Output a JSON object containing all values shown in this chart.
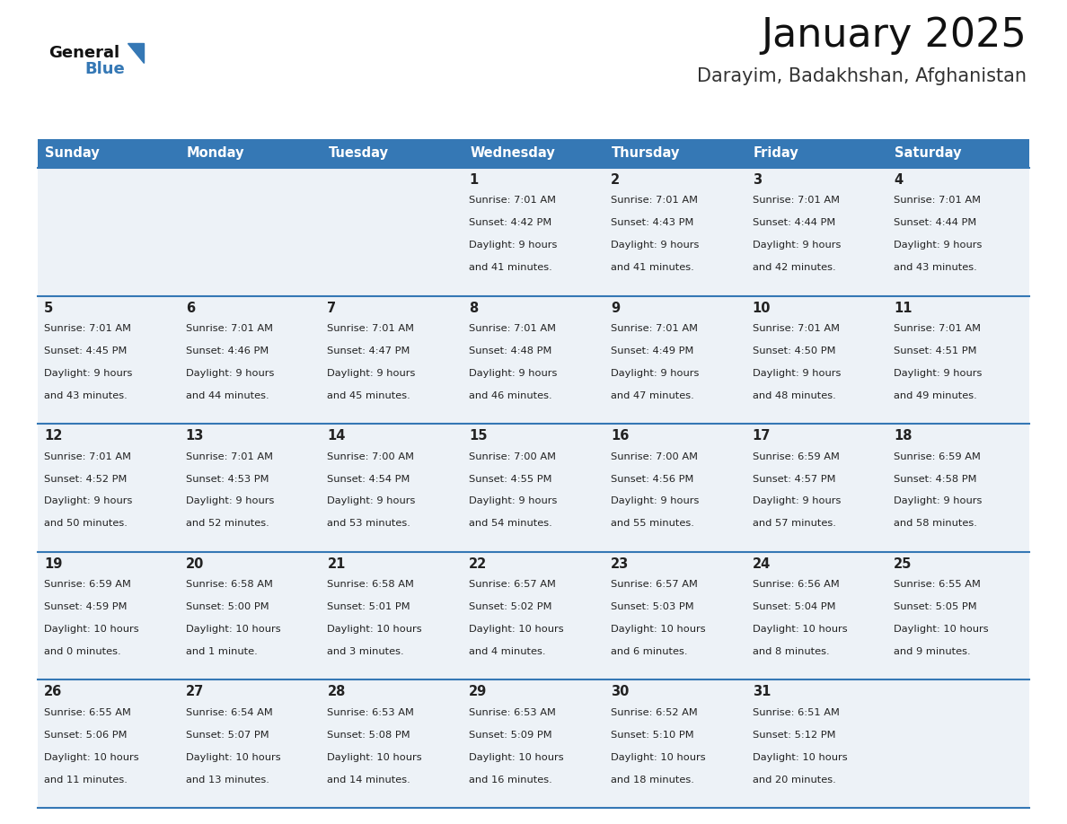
{
  "title": "January 2025",
  "subtitle": "Darayim, Badakhshan, Afghanistan",
  "header_bg_color": "#3578b5",
  "header_text_color": "#ffffff",
  "cell_bg_color": "#edf2f7",
  "text_color": "#222222",
  "divider_color": "#3578b5",
  "days_of_week": [
    "Sunday",
    "Monday",
    "Tuesday",
    "Wednesday",
    "Thursday",
    "Friday",
    "Saturday"
  ],
  "calendar": [
    [
      {
        "day": "",
        "sunrise": "",
        "sunset": "",
        "daylight_h": "",
        "daylight_m": ""
      },
      {
        "day": "",
        "sunrise": "",
        "sunset": "",
        "daylight_h": "",
        "daylight_m": ""
      },
      {
        "day": "",
        "sunrise": "",
        "sunset": "",
        "daylight_h": "",
        "daylight_m": ""
      },
      {
        "day": "1",
        "sunrise": "7:01 AM",
        "sunset": "4:42 PM",
        "daylight_h": "9",
        "daylight_m": "41"
      },
      {
        "day": "2",
        "sunrise": "7:01 AM",
        "sunset": "4:43 PM",
        "daylight_h": "9",
        "daylight_m": "41"
      },
      {
        "day": "3",
        "sunrise": "7:01 AM",
        "sunset": "4:44 PM",
        "daylight_h": "9",
        "daylight_m": "42"
      },
      {
        "day": "4",
        "sunrise": "7:01 AM",
        "sunset": "4:44 PM",
        "daylight_h": "9",
        "daylight_m": "43"
      }
    ],
    [
      {
        "day": "5",
        "sunrise": "7:01 AM",
        "sunset": "4:45 PM",
        "daylight_h": "9",
        "daylight_m": "43"
      },
      {
        "day": "6",
        "sunrise": "7:01 AM",
        "sunset": "4:46 PM",
        "daylight_h": "9",
        "daylight_m": "44"
      },
      {
        "day": "7",
        "sunrise": "7:01 AM",
        "sunset": "4:47 PM",
        "daylight_h": "9",
        "daylight_m": "45"
      },
      {
        "day": "8",
        "sunrise": "7:01 AM",
        "sunset": "4:48 PM",
        "daylight_h": "9",
        "daylight_m": "46"
      },
      {
        "day": "9",
        "sunrise": "7:01 AM",
        "sunset": "4:49 PM",
        "daylight_h": "9",
        "daylight_m": "47"
      },
      {
        "day": "10",
        "sunrise": "7:01 AM",
        "sunset": "4:50 PM",
        "daylight_h": "9",
        "daylight_m": "48"
      },
      {
        "day": "11",
        "sunrise": "7:01 AM",
        "sunset": "4:51 PM",
        "daylight_h": "9",
        "daylight_m": "49"
      }
    ],
    [
      {
        "day": "12",
        "sunrise": "7:01 AM",
        "sunset": "4:52 PM",
        "daylight_h": "9",
        "daylight_m": "50"
      },
      {
        "day": "13",
        "sunrise": "7:01 AM",
        "sunset": "4:53 PM",
        "daylight_h": "9",
        "daylight_m": "52"
      },
      {
        "day": "14",
        "sunrise": "7:00 AM",
        "sunset": "4:54 PM",
        "daylight_h": "9",
        "daylight_m": "53"
      },
      {
        "day": "15",
        "sunrise": "7:00 AM",
        "sunset": "4:55 PM",
        "daylight_h": "9",
        "daylight_m": "54"
      },
      {
        "day": "16",
        "sunrise": "7:00 AM",
        "sunset": "4:56 PM",
        "daylight_h": "9",
        "daylight_m": "55"
      },
      {
        "day": "17",
        "sunrise": "6:59 AM",
        "sunset": "4:57 PM",
        "daylight_h": "9",
        "daylight_m": "57"
      },
      {
        "day": "18",
        "sunrise": "6:59 AM",
        "sunset": "4:58 PM",
        "daylight_h": "9",
        "daylight_m": "58"
      }
    ],
    [
      {
        "day": "19",
        "sunrise": "6:59 AM",
        "sunset": "4:59 PM",
        "daylight_h": "10",
        "daylight_m": "0"
      },
      {
        "day": "20",
        "sunrise": "6:58 AM",
        "sunset": "5:00 PM",
        "daylight_h": "10",
        "daylight_m": "1"
      },
      {
        "day": "21",
        "sunrise": "6:58 AM",
        "sunset": "5:01 PM",
        "daylight_h": "10",
        "daylight_m": "3"
      },
      {
        "day": "22",
        "sunrise": "6:57 AM",
        "sunset": "5:02 PM",
        "daylight_h": "10",
        "daylight_m": "4"
      },
      {
        "day": "23",
        "sunrise": "6:57 AM",
        "sunset": "5:03 PM",
        "daylight_h": "10",
        "daylight_m": "6"
      },
      {
        "day": "24",
        "sunrise": "6:56 AM",
        "sunset": "5:04 PM",
        "daylight_h": "10",
        "daylight_m": "8"
      },
      {
        "day": "25",
        "sunrise": "6:55 AM",
        "sunset": "5:05 PM",
        "daylight_h": "10",
        "daylight_m": "9"
      }
    ],
    [
      {
        "day": "26",
        "sunrise": "6:55 AM",
        "sunset": "5:06 PM",
        "daylight_h": "10",
        "daylight_m": "11"
      },
      {
        "day": "27",
        "sunrise": "6:54 AM",
        "sunset": "5:07 PM",
        "daylight_h": "10",
        "daylight_m": "13"
      },
      {
        "day": "28",
        "sunrise": "6:53 AM",
        "sunset": "5:08 PM",
        "daylight_h": "10",
        "daylight_m": "14"
      },
      {
        "day": "29",
        "sunrise": "6:53 AM",
        "sunset": "5:09 PM",
        "daylight_h": "10",
        "daylight_m": "16"
      },
      {
        "day": "30",
        "sunrise": "6:52 AM",
        "sunset": "5:10 PM",
        "daylight_h": "10",
        "daylight_m": "18"
      },
      {
        "day": "31",
        "sunrise": "6:51 AM",
        "sunset": "5:12 PM",
        "daylight_h": "10",
        "daylight_m": "20"
      },
      {
        "day": "",
        "sunrise": "",
        "sunset": "",
        "daylight_h": "",
        "daylight_m": ""
      }
    ]
  ]
}
